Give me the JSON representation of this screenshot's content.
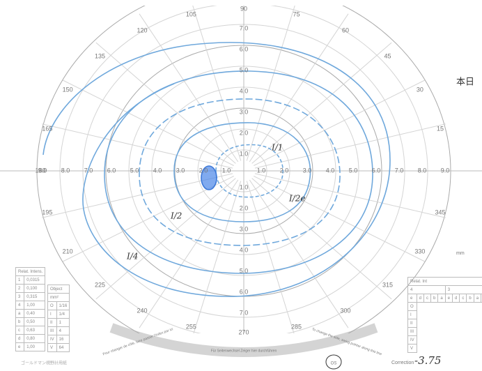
{
  "angle_labels": [
    15,
    30,
    45,
    60,
    75,
    90,
    105,
    120,
    135,
    150,
    165,
    180,
    195,
    210,
    225,
    240,
    255,
    270,
    285,
    300,
    315,
    330,
    345
  ],
  "radial_labels": [
    "1.0",
    "2.0",
    "3.0",
    "4.0",
    "5.0",
    "6.0",
    "7.0",
    "8.0",
    "9.0"
  ],
  "isopter_labels": [
    "I/4",
    "I/2",
    "I/1",
    "I/2e"
  ],
  "side_note": "本日",
  "units": "mm",
  "intensity_table": {
    "header": "Relat. Intens.",
    "rows": [
      [
        "1",
        "0,0315"
      ],
      [
        "2",
        "0,100"
      ],
      [
        "3",
        "0,315"
      ],
      [
        "4",
        "1,00"
      ],
      [
        "a",
        "0,40"
      ],
      [
        "b",
        "0,50"
      ],
      [
        "c",
        "0,63"
      ],
      [
        "d",
        "0,80"
      ],
      [
        "e",
        "1,00"
      ]
    ]
  },
  "object_table": {
    "header": "Object",
    "unit": "mm²",
    "rows": [
      [
        "O",
        "1/16"
      ],
      [
        "I",
        "1/4"
      ],
      [
        "II",
        "1"
      ],
      [
        "III",
        "4"
      ],
      [
        "IV",
        "16"
      ],
      [
        "V",
        "64"
      ]
    ]
  },
  "footer_brand": "ゴールドマン視野計用紙",
  "pointer_notes": [
    "Pour changer de côté, faire passer l'index par ici",
    "Für Seitenwechsel Zeiger hier durchführen",
    "To change the side, swing pointer along this line"
  ],
  "record_table": {
    "header": "Relat. Int",
    "columns": [
      "4",
      "3"
    ],
    "letters": [
      "e",
      "d",
      "c",
      "b",
      "a",
      "e",
      "d",
      "c",
      "b",
      "a",
      "e"
    ],
    "object_label": "Object",
    "rows": [
      "O",
      "I",
      "II",
      "III",
      "IV",
      "V"
    ]
  },
  "correction": {
    "label": "Correction",
    "value": "-3.75"
  },
  "eye": "OS"
}
